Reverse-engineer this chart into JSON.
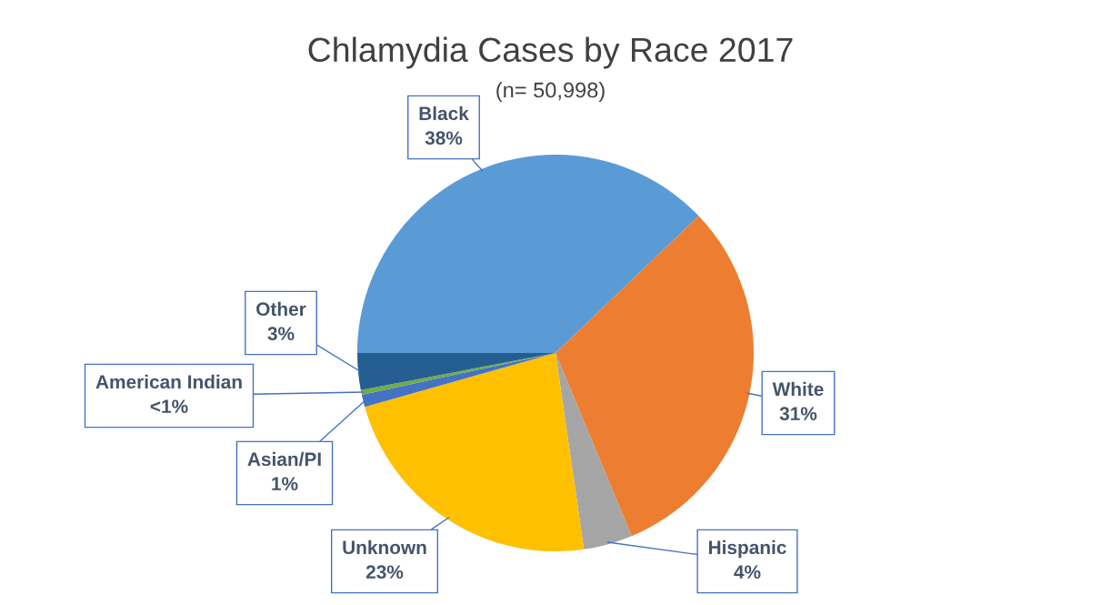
{
  "chart_data": {
    "type": "pie",
    "title": "Chlamydia Cases by Race 2017",
    "subtitle": "(n= 50,998)",
    "categories": [
      "Black",
      "White",
      "Hispanic",
      "Unknown",
      "Asian/PI",
      "American Indian",
      "Other"
    ],
    "values": [
      38,
      31,
      4,
      23,
      1,
      0.4,
      3
    ],
    "value_labels": [
      "38%",
      "31%",
      "4%",
      "23%",
      "1%",
      "<1%",
      "3%"
    ],
    "colors": [
      "#5b9bd5",
      "#ed7d31",
      "#a5a5a5",
      "#ffc000",
      "#4472c4",
      "#70ad47",
      "#255e91"
    ],
    "legend": false
  }
}
